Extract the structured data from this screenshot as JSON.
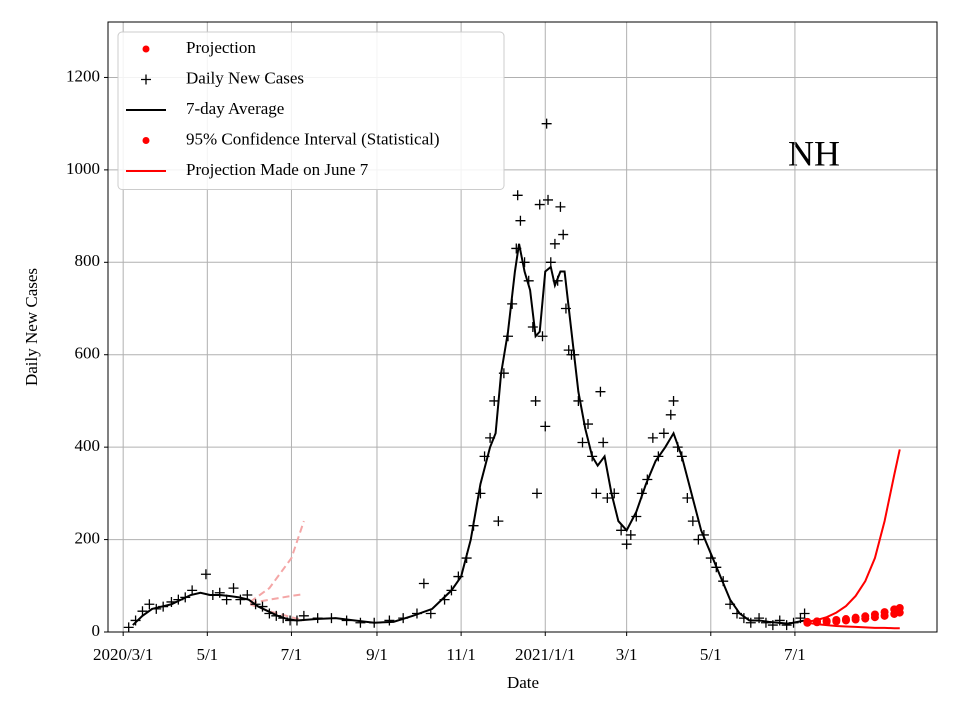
{
  "chart_data": {
    "type": "line",
    "annotation": "NH",
    "xlabel": "Date",
    "ylabel": "Daily New Cases",
    "xlim": [
      "2020-02-19",
      "2021-10-12"
    ],
    "ylim": [
      0,
      1320
    ],
    "yticks": [
      0,
      200,
      400,
      600,
      800,
      1000,
      1200
    ],
    "xticks": [
      {
        "value": "2020-03-01",
        "label": "2020/3/1"
      },
      {
        "value": "2020-05-01",
        "label": "5/1"
      },
      {
        "value": "2020-07-01",
        "label": "7/1"
      },
      {
        "value": "2020-09-01",
        "label": "9/1"
      },
      {
        "value": "2020-11-01",
        "label": "11/1"
      },
      {
        "value": "2021-01-01",
        "label": "2021/1/1"
      },
      {
        "value": "2021-03-01",
        "label": "3/1"
      },
      {
        "value": "2021-05-01",
        "label": "5/1"
      },
      {
        "value": "2021-07-01",
        "label": "7/1"
      }
    ],
    "grid": true,
    "legend": "upper left",
    "series": [
      {
        "name": "Projection",
        "marker": "dot",
        "color": "#ff0000",
        "x": [
          "2021-07-10",
          "2021-07-17",
          "2021-07-24",
          "2021-07-31",
          "2021-08-07",
          "2021-08-14",
          "2021-08-21",
          "2021-08-28",
          "2021-09-04",
          "2021-09-11",
          "2021-09-15"
        ],
        "values": [
          22,
          23,
          24,
          26,
          28,
          31,
          34,
          38,
          43,
          49,
          52
        ]
      },
      {
        "name": "Daily New Cases",
        "marker": "plus",
        "color": "#000000",
        "x": [
          "2020-03-05",
          "2020-03-10",
          "2020-03-15",
          "2020-03-20",
          "2020-03-25",
          "2020-03-30",
          "2020-04-05",
          "2020-04-10",
          "2020-04-15",
          "2020-04-20",
          "2020-04-30",
          "2020-05-05",
          "2020-05-10",
          "2020-05-15",
          "2020-05-20",
          "2020-05-25",
          "2020-05-30",
          "2020-06-05",
          "2020-06-10",
          "2020-06-15",
          "2020-06-20",
          "2020-06-25",
          "2020-06-30",
          "2020-07-05",
          "2020-07-10",
          "2020-07-20",
          "2020-07-30",
          "2020-08-10",
          "2020-08-20",
          "2020-08-30",
          "2020-09-10",
          "2020-09-20",
          "2020-09-30",
          "2020-10-05",
          "2020-10-10",
          "2020-10-20",
          "2020-10-25",
          "2020-10-30",
          "2020-11-05",
          "2020-11-10",
          "2020-11-15",
          "2020-11-18",
          "2020-11-22",
          "2020-11-25",
          "2020-11-28",
          "2020-12-02",
          "2020-12-05",
          "2020-12-08",
          "2020-12-11",
          "2020-12-12",
          "2020-12-14",
          "2020-12-17",
          "2020-12-20",
          "2020-12-23",
          "2020-12-25",
          "2020-12-26",
          "2020-12-28",
          "2020-12-30",
          "2021-01-01",
          "2021-01-02",
          "2021-01-03",
          "2021-01-05",
          "2021-01-08",
          "2021-01-10",
          "2021-01-12",
          "2021-01-14",
          "2021-01-16",
          "2021-01-18",
          "2021-01-20",
          "2021-01-22",
          "2021-01-25",
          "2021-01-28",
          "2021-02-01",
          "2021-02-04",
          "2021-02-07",
          "2021-02-10",
          "2021-02-12",
          "2021-02-15",
          "2021-02-20",
          "2021-02-25",
          "2021-03-01",
          "2021-03-04",
          "2021-03-08",
          "2021-03-12",
          "2021-03-16",
          "2021-03-20",
          "2021-03-24",
          "2021-03-28",
          "2021-04-02",
          "2021-04-04",
          "2021-04-07",
          "2021-04-10",
          "2021-04-14",
          "2021-04-18",
          "2021-04-22",
          "2021-04-26",
          "2021-05-01",
          "2021-05-05",
          "2021-05-10",
          "2021-05-15",
          "2021-05-20",
          "2021-05-25",
          "2021-05-30",
          "2021-06-05",
          "2021-06-10",
          "2021-06-15",
          "2021-06-20",
          "2021-06-25",
          "2021-06-30",
          "2021-07-05",
          "2021-07-08"
        ],
        "values": [
          10,
          25,
          45,
          60,
          50,
          55,
          65,
          70,
          75,
          90,
          125,
          80,
          85,
          70,
          95,
          70,
          80,
          60,
          55,
          40,
          35,
          30,
          25,
          25,
          35,
          30,
          30,
          25,
          20,
          20,
          25,
          30,
          40,
          105,
          40,
          70,
          90,
          120,
          160,
          230,
          300,
          380,
          420,
          500,
          240,
          560,
          640,
          710,
          830,
          945,
          890,
          800,
          760,
          660,
          500,
          300,
          925,
          640,
          445,
          1100,
          935,
          800,
          840,
          760,
          920,
          860,
          700,
          610,
          600,
          600,
          500,
          410,
          450,
          380,
          300,
          520,
          410,
          290,
          300,
          220,
          190,
          210,
          250,
          300,
          330,
          420,
          380,
          430,
          470,
          500,
          400,
          380,
          290,
          240,
          200,
          210,
          160,
          140,
          110,
          60,
          40,
          30,
          20,
          30,
          20,
          15,
          25,
          15,
          20,
          30,
          40
        ]
      },
      {
        "name": "7-day Average",
        "marker": "line",
        "color": "#000000",
        "x": [
          "2020-03-08",
          "2020-03-15",
          "2020-03-22",
          "2020-03-29",
          "2020-04-05",
          "2020-04-12",
          "2020-04-19",
          "2020-04-26",
          "2020-05-03",
          "2020-05-10",
          "2020-05-17",
          "2020-05-24",
          "2020-05-31",
          "2020-06-07",
          "2020-06-14",
          "2020-06-21",
          "2020-06-28",
          "2020-07-05",
          "2020-07-19",
          "2020-08-02",
          "2020-08-16",
          "2020-08-30",
          "2020-09-13",
          "2020-09-27",
          "2020-10-11",
          "2020-10-25",
          "2020-11-01",
          "2020-11-08",
          "2020-11-15",
          "2020-11-22",
          "2020-11-26",
          "2020-11-30",
          "2020-12-05",
          "2020-12-10",
          "2020-12-13",
          "2020-12-17",
          "2020-12-21",
          "2020-12-25",
          "2020-12-28",
          "2021-01-01",
          "2021-01-05",
          "2021-01-08",
          "2021-01-12",
          "2021-01-15",
          "2021-01-20",
          "2021-01-25",
          "2021-01-30",
          "2021-02-04",
          "2021-02-08",
          "2021-02-13",
          "2021-02-18",
          "2021-02-23",
          "2021-03-01",
          "2021-03-08",
          "2021-03-15",
          "2021-03-22",
          "2021-03-29",
          "2021-04-04",
          "2021-04-10",
          "2021-04-17",
          "2021-04-24",
          "2021-05-01",
          "2021-05-08",
          "2021-05-15",
          "2021-05-22",
          "2021-05-29",
          "2021-06-05",
          "2021-06-12",
          "2021-06-19",
          "2021-06-26",
          "2021-07-03",
          "2021-07-08"
        ],
        "values": [
          15,
          35,
          50,
          55,
          60,
          70,
          80,
          85,
          80,
          80,
          78,
          75,
          70,
          55,
          45,
          35,
          28,
          25,
          28,
          30,
          25,
          20,
          22,
          35,
          50,
          90,
          120,
          200,
          320,
          400,
          430,
          560,
          650,
          780,
          840,
          780,
          740,
          640,
          650,
          780,
          790,
          750,
          780,
          780,
          650,
          520,
          440,
          380,
          360,
          380,
          300,
          240,
          220,
          260,
          320,
          370,
          400,
          430,
          380,
          300,
          220,
          170,
          120,
          70,
          40,
          25,
          25,
          22,
          20,
          18,
          22,
          25
        ]
      },
      {
        "name": "95% Confidence Interval (Statistical)",
        "marker": "dot",
        "color": "#ff0000",
        "x": [
          "2021-07-10",
          "2021-07-17",
          "2021-07-24",
          "2021-07-31",
          "2021-08-07",
          "2021-08-14",
          "2021-08-21",
          "2021-08-28",
          "2021-09-04",
          "2021-09-11",
          "2021-09-15"
        ],
        "values": [
          20,
          21,
          22,
          23,
          25,
          27,
          29,
          32,
          35,
          39,
          42
        ]
      },
      {
        "name": "Projection Made on June 7",
        "marker": "line",
        "color": "#ff0000",
        "x": [
          "2021-07-10",
          "2021-07-17",
          "2021-07-24",
          "2021-07-31",
          "2021-08-07",
          "2021-08-14",
          "2021-08-21",
          "2021-08-28",
          "2021-09-04",
          "2021-09-11",
          "2021-09-15"
        ],
        "values": [
          22,
          26,
          32,
          42,
          56,
          78,
          110,
          160,
          240,
          340,
          395
        ]
      },
      {
        "marker": "line",
        "color": "#ff0000",
        "x": [
          "2021-07-10",
          "2021-07-17",
          "2021-07-24",
          "2021-07-31",
          "2021-08-07",
          "2021-08-14",
          "2021-08-21",
          "2021-08-28",
          "2021-09-04",
          "2021-09-11",
          "2021-09-15"
        ],
        "values": [
          20,
          17,
          15,
          13,
          12,
          11,
          10,
          9,
          9,
          8,
          8
        ]
      },
      {
        "marker": "dashed",
        "color": "#f4a6a6",
        "x": [
          "2020-06-01",
          "2020-06-15",
          "2020-07-01",
          "2020-07-10"
        ],
        "values": [
          65,
          95,
          160,
          240
        ]
      },
      {
        "marker": "dashed",
        "color": "#f4a6a6",
        "x": [
          "2020-06-01",
          "2020-06-15",
          "2020-07-01",
          "2020-07-10"
        ],
        "values": [
          62,
          70,
          78,
          82
        ]
      },
      {
        "marker": "dashed",
        "color": "#f4a6a6",
        "x": [
          "2020-06-01",
          "2020-06-15",
          "2020-07-01",
          "2020-07-10"
        ],
        "values": [
          60,
          45,
          32,
          25
        ]
      }
    ]
  }
}
